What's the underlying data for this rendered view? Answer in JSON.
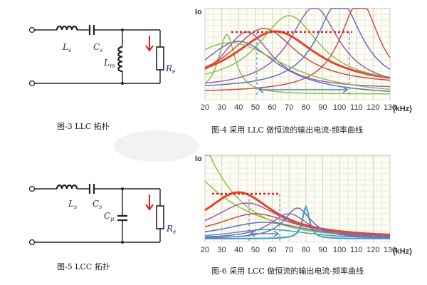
{
  "circuits": [
    {
      "labels": [
        {
          "main": "L",
          "sub": "s"
        },
        {
          "main": "C",
          "sub": "s"
        },
        {
          "main": "L",
          "sub": "m"
        },
        {
          "main": "R",
          "sub": "e"
        }
      ],
      "caption": "图-3    LLC 拓扑"
    },
    {
      "labels": [
        {
          "main": "L",
          "sub": "s"
        },
        {
          "main": "C",
          "sub": "s"
        },
        {
          "main": "C",
          "sub": "p"
        },
        {
          "main": "R",
          "sub": "e"
        }
      ],
      "caption": "图-5    LCC 拓扑"
    }
  ],
  "charts": [
    {
      "y_label": "Io",
      "x_ticks": [
        "20",
        "30",
        "40",
        "50",
        "60",
        "70",
        "80",
        "90",
        "100",
        "110",
        "120",
        "130"
      ],
      "x_unit": "(kHz)",
      "caption": "图-4    采用 LLC 做恒流的输出电流-频率曲线"
    },
    {
      "y_label": "Io",
      "x_ticks": [
        "20",
        "30",
        "40",
        "50",
        "60",
        "70",
        "80",
        "90",
        "100",
        "110",
        "120",
        "130"
      ],
      "x_unit": "(kHz)",
      "caption": "图-6    采用 LCC 做恒流的输出电流-频率曲线"
    }
  ]
}
